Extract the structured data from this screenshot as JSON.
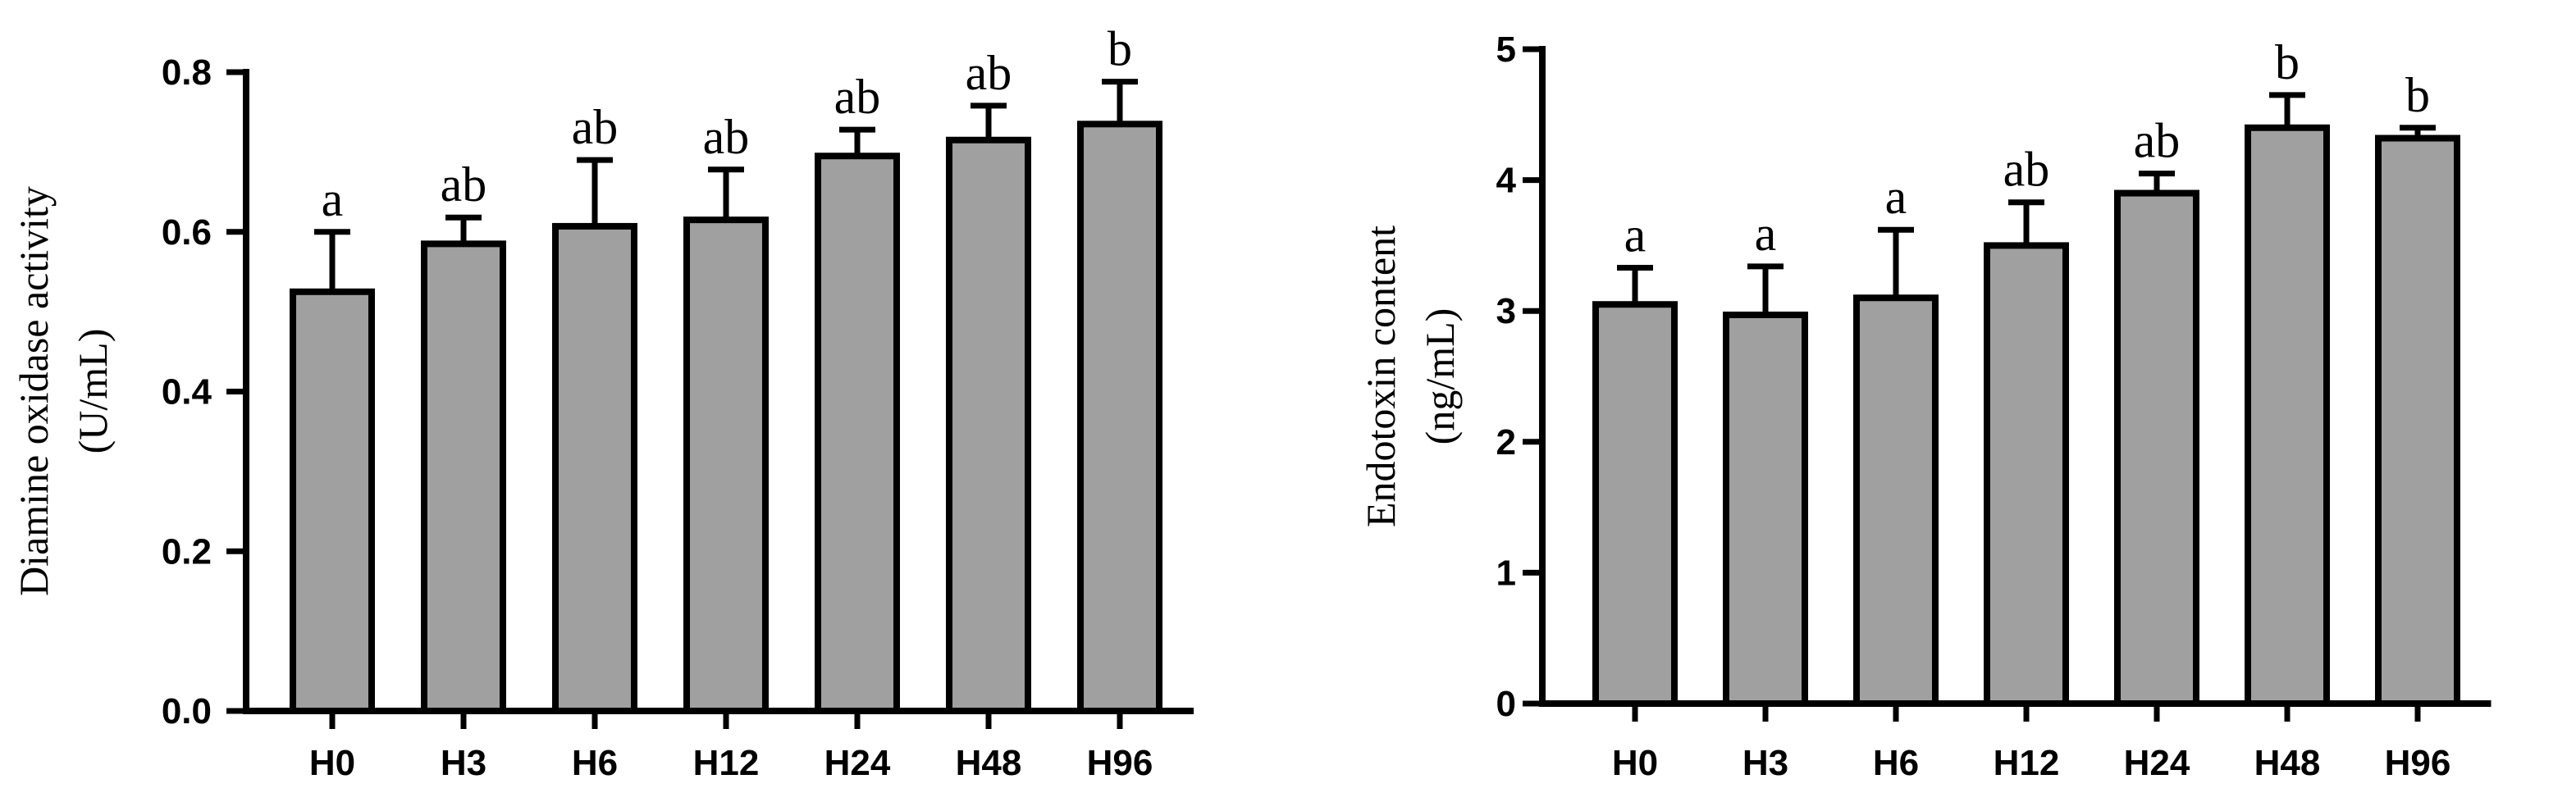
{
  "chart_data": [
    {
      "type": "bar",
      "categories": [
        "H0",
        "H3",
        "H6",
        "H12",
        "H24",
        "H48",
        "H96"
      ],
      "values": [
        0.525,
        0.585,
        0.607,
        0.615,
        0.695,
        0.715,
        0.735
      ],
      "errors": [
        0.075,
        0.033,
        0.083,
        0.063,
        0.033,
        0.043,
        0.053
      ],
      "significance": [
        "a",
        "ab",
        "ab",
        "ab",
        "ab",
        "ab",
        "b"
      ],
      "ylim": [
        0,
        0.8
      ],
      "yticks": [
        "0.0",
        "0.2",
        "0.4",
        "0.6",
        "0.8"
      ],
      "ylabel": [
        "Diamine oxidase activity",
        "(U/mL)"
      ],
      "xlabel": "",
      "title": "",
      "grid": false,
      "bar_color": "#a0a0a0"
    },
    {
      "type": "bar",
      "categories": [
        "H0",
        "H3",
        "H6",
        "H12",
        "H24",
        "H48",
        "H96"
      ],
      "values": [
        3.05,
        2.97,
        3.1,
        3.5,
        3.9,
        4.4,
        4.32
      ],
      "errors": [
        0.28,
        0.37,
        0.52,
        0.33,
        0.15,
        0.25,
        0.08
      ],
      "significance": [
        "a",
        "a",
        "a",
        "ab",
        "ab",
        "b",
        "b"
      ],
      "ylim": [
        0,
        5
      ],
      "yticks": [
        "0",
        "1",
        "2",
        "3",
        "4",
        "5"
      ],
      "ylabel": [
        "Endotoxin content",
        "(ng/mL)"
      ],
      "xlabel": "",
      "title": "",
      "grid": false,
      "bar_color": "#a0a0a0"
    }
  ]
}
